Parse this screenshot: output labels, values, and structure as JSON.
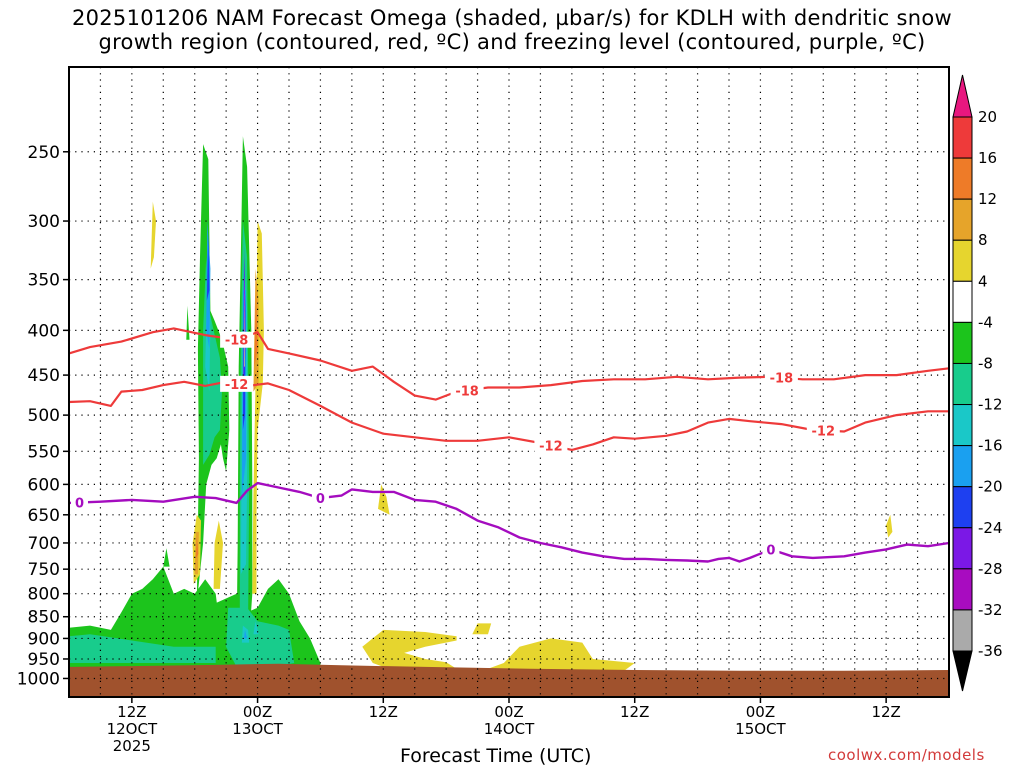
{
  "title": {
    "line1": "2025101206 NAM Forecast Omega (shaded, µbar/s) for KDLH with dendritic snow",
    "line2": "growth region (contoured, red, ºC) and freezing level (contoured, purple, ºC)"
  },
  "credit": "coolwx.com/models",
  "chart_data": {
    "type": "contour",
    "title": "2025101206 NAM Forecast Omega (shaded, µbar/s) for KDLH with dendritic snow growth region (contoured, red, ºC) and freezing level (contoured, purple, ºC)",
    "xlabel": "Forecast Time (UTC)",
    "ylabel": "",
    "y_scale": "log-pressure",
    "y_reversed": true,
    "ylim": [
      1050,
      200
    ],
    "y_ticks": [
      250,
      300,
      350,
      400,
      450,
      500,
      550,
      600,
      650,
      700,
      750,
      800,
      850,
      900,
      950,
      1000
    ],
    "xlim": [
      6,
      90
    ],
    "x_ticks": [
      {
        "hour": 12,
        "labels": [
          "12Z",
          "12OCT",
          "2025"
        ]
      },
      {
        "hour": 24,
        "labels": [
          "00Z",
          "13OCT"
        ]
      },
      {
        "hour": 36,
        "labels": [
          "12Z"
        ]
      },
      {
        "hour": 48,
        "labels": [
          "00Z",
          "14OCT"
        ]
      },
      {
        "hour": 60,
        "labels": [
          "12Z"
        ]
      },
      {
        "hour": 72,
        "labels": [
          "00Z",
          "15OCT"
        ]
      },
      {
        "hour": 84,
        "labels": [
          "12Z"
        ]
      }
    ],
    "grid": true,
    "terrain_color": "#a0522d",
    "colorbar": {
      "ticks": [
        20,
        16,
        12,
        8,
        4,
        -4,
        -8,
        -12,
        -16,
        -20,
        -24,
        -28,
        -32,
        -36
      ],
      "bins": [
        {
          "from": 20,
          "to": 24,
          "color": "#e8177f"
        },
        {
          "from": 16,
          "to": 20,
          "color": "#ee3a3a"
        },
        {
          "from": 12,
          "to": 16,
          "color": "#ee7b28"
        },
        {
          "from": 8,
          "to": 12,
          "color": "#e6a42a"
        },
        {
          "from": 4,
          "to": 8,
          "color": "#e6d52e"
        },
        {
          "from": -4,
          "to": 4,
          "color": "#ffffff"
        },
        {
          "from": -8,
          "to": -4,
          "color": "#1cc41c"
        },
        {
          "from": -12,
          "to": -8,
          "color": "#18cc8c"
        },
        {
          "from": -16,
          "to": -12,
          "color": "#1ac8c8"
        },
        {
          "from": -20,
          "to": -16,
          "color": "#1aa0f0"
        },
        {
          "from": -24,
          "to": -20,
          "color": "#1e40f0"
        },
        {
          "from": -28,
          "to": -24,
          "color": "#7b18e6"
        },
        {
          "from": -32,
          "to": -28,
          "color": "#a80cc0"
        },
        {
          "from": -36,
          "to": -32,
          "color": "#aaaaaa"
        },
        {
          "from": -40,
          "to": -36,
          "color": "#000000"
        }
      ]
    },
    "series": [
      {
        "name": "-18",
        "color": "#ee3a3a",
        "kind": "isotherm",
        "labels_at_hours": [
          22,
          44,
          74
        ],
        "points": [
          [
            6,
            425
          ],
          [
            8,
            418
          ],
          [
            11,
            412
          ],
          [
            14,
            402
          ],
          [
            16,
            398
          ],
          [
            19,
            405
          ],
          [
            22,
            410
          ],
          [
            24,
            402
          ],
          [
            25,
            420
          ],
          [
            27,
            425
          ],
          [
            30,
            433
          ],
          [
            33,
            445
          ],
          [
            35,
            440
          ],
          [
            37,
            458
          ],
          [
            39,
            475
          ],
          [
            41,
            480
          ],
          [
            43,
            470
          ],
          [
            46,
            465
          ],
          [
            49,
            465
          ],
          [
            52,
            462
          ],
          [
            55,
            457
          ],
          [
            58,
            455
          ],
          [
            61,
            455
          ],
          [
            64,
            452
          ],
          [
            67,
            455
          ],
          [
            70,
            453
          ],
          [
            73,
            452
          ],
          [
            76,
            455
          ],
          [
            79,
            455
          ],
          [
            82,
            450
          ],
          [
            85,
            450
          ],
          [
            88,
            445
          ],
          [
            90,
            442
          ]
        ]
      },
      {
        "name": "-12",
        "color": "#ee3a3a",
        "kind": "isotherm",
        "labels_at_hours": [
          22,
          52,
          78
        ],
        "points": [
          [
            6,
            483
          ],
          [
            8,
            482
          ],
          [
            10,
            488
          ],
          [
            11,
            470
          ],
          [
            13,
            468
          ],
          [
            15,
            462
          ],
          [
            17,
            458
          ],
          [
            19,
            463
          ],
          [
            21,
            458
          ],
          [
            23,
            463
          ],
          [
            25,
            460
          ],
          [
            27,
            468
          ],
          [
            30,
            488
          ],
          [
            33,
            510
          ],
          [
            36,
            525
          ],
          [
            39,
            530
          ],
          [
            42,
            535
          ],
          [
            45,
            535
          ],
          [
            48,
            530
          ],
          [
            51,
            538
          ],
          [
            54,
            548
          ],
          [
            56,
            540
          ],
          [
            58,
            530
          ],
          [
            60,
            532
          ],
          [
            63,
            528
          ],
          [
            65,
            522
          ],
          [
            67,
            510
          ],
          [
            69,
            505
          ],
          [
            71,
            508
          ],
          [
            74,
            512
          ],
          [
            77,
            520
          ],
          [
            80,
            522
          ],
          [
            82,
            510
          ],
          [
            85,
            500
          ],
          [
            88,
            495
          ],
          [
            90,
            495
          ]
        ]
      },
      {
        "name": "0",
        "color": "#a40cbf",
        "kind": "freezing level",
        "labels_at_hours": [
          7,
          30,
          73
        ],
        "points": [
          [
            6,
            630
          ],
          [
            9,
            628
          ],
          [
            12,
            625
          ],
          [
            15,
            628
          ],
          [
            18,
            620
          ],
          [
            20,
            622
          ],
          [
            22,
            630
          ],
          [
            23,
            610
          ],
          [
            24,
            598
          ],
          [
            26,
            605
          ],
          [
            28,
            612
          ],
          [
            30,
            622
          ],
          [
            32,
            618
          ],
          [
            33,
            608
          ],
          [
            35,
            612
          ],
          [
            37,
            612
          ],
          [
            39,
            625
          ],
          [
            41,
            628
          ],
          [
            43,
            640
          ],
          [
            45,
            660
          ],
          [
            47,
            672
          ],
          [
            49,
            690
          ],
          [
            51,
            700
          ],
          [
            53,
            708
          ],
          [
            55,
            718
          ],
          [
            57,
            725
          ],
          [
            59,
            730
          ],
          [
            61,
            730
          ],
          [
            63,
            732
          ],
          [
            65,
            733
          ],
          [
            67,
            735
          ],
          [
            68,
            730
          ],
          [
            69,
            728
          ],
          [
            70,
            735
          ],
          [
            71,
            728
          ],
          [
            73,
            712
          ],
          [
            75,
            725
          ],
          [
            77,
            728
          ],
          [
            80,
            725
          ],
          [
            82,
            718
          ],
          [
            84,
            712
          ],
          [
            86,
            703
          ],
          [
            88,
            706
          ],
          [
            90,
            700
          ]
        ]
      }
    ]
  }
}
